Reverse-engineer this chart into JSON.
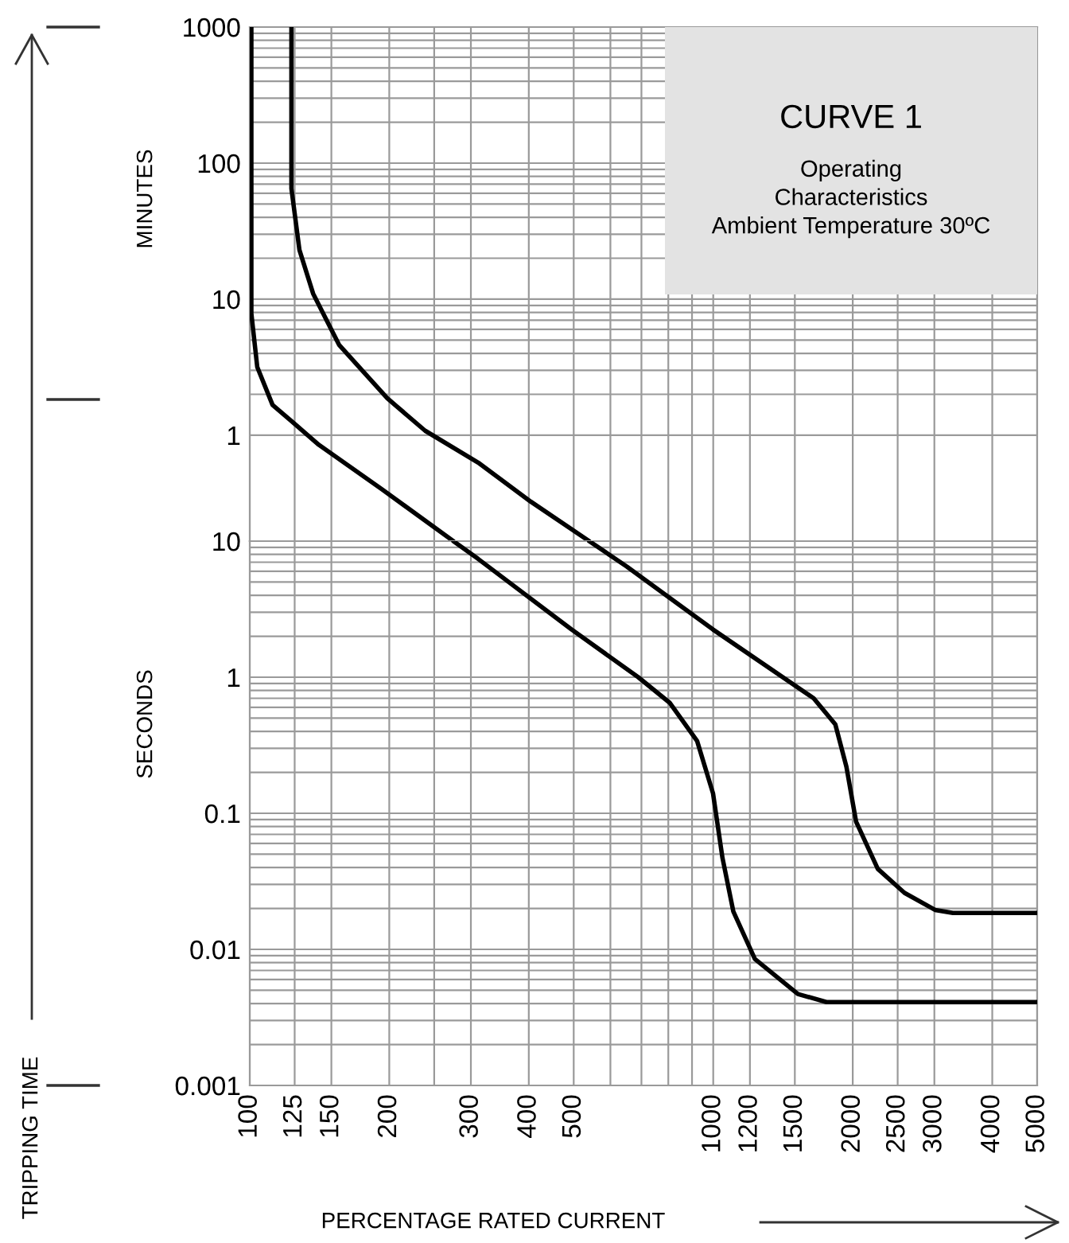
{
  "chart_data": [
    {
      "type": "line",
      "title": "CURVE 1",
      "subtitle": "Operating\nCharacteristics\nAmbient Temperature 30ºC",
      "annotations": [
        "MINUTES",
        "TRIPPING TIME"
      ],
      "log": "xy",
      "grid": true,
      "line_style": "solid",
      "tick_labels": "y",
      "xlim": [
        100,
        5000
      ],
      "xticks": [
        100,
        125,
        150,
        200,
        {
          "value": 250,
          "label": null
        },
        300,
        400,
        500,
        {
          "value": 600,
          "label": null
        },
        {
          "value": 700,
          "label": null
        },
        {
          "value": 800,
          "label": null
        },
        {
          "value": 900,
          "label": null
        },
        1000,
        1200,
        1500,
        2000,
        2500,
        3000,
        4000,
        5000
      ],
      "ylim": [
        0.1667,
        1000
      ],
      "yticks": [
        1,
        10,
        100,
        1000
      ],
      "series": [
        {
          "color": "#000000",
          "x": [
            100.8,
            100.8,
            103.8,
            112,
            123,
            141,
            193,
            275
          ],
          "values": [
            1000,
            7.83,
            3.17,
            1.67,
            1.27,
            0.85,
            0.4,
            0.1667
          ]
        },
        {
          "color": "#000000",
          "x": [
            123,
            123,
            128,
            137,
            156,
            198,
            239,
            311,
            404,
            540
          ],
          "values": [
            1000,
            65,
            23,
            11,
            4.6,
            1.87,
            1.08,
            0.63,
            0.325,
            0.1667
          ]
        }
      ]
    },
    {
      "type": "line",
      "xlabel": "PERCENTAGE RATED CURRENT",
      "annotations": [
        "SECONDS"
      ],
      "log": "xy",
      "grid": true,
      "line_style": "solid",
      "xlim": [
        100,
        5000
      ],
      "xticks": [
        100,
        125,
        150,
        200,
        {
          "value": 250,
          "label": null
        },
        300,
        400,
        500,
        {
          "value": 600,
          "label": null
        },
        {
          "value": 700,
          "label": null
        },
        {
          "value": 800,
          "label": null
        },
        {
          "value": 900,
          "label": null
        },
        1000,
        1200,
        1500,
        2000,
        2500,
        3000,
        4000,
        5000
      ],
      "ylim": [
        0.001,
        10
      ],
      "yticks": [
        0.001,
        0.01,
        0.1,
        1,
        10
      ],
      "series": [
        {
          "color": "#000000",
          "x": [
            275,
            311,
            494,
            689,
            805,
            923,
            999,
            1047,
            1105,
            1230,
            1523,
            1755,
            5000
          ],
          "values": [
            10,
            7.4,
            2.25,
            1.0,
            0.65,
            0.34,
            0.14,
            0.047,
            0.019,
            0.0085,
            0.0047,
            0.0041,
            0.0041
          ]
        },
        {
          "color": "#000000",
          "x": [
            540,
            651,
            999,
            1647,
            1834,
            1938,
            2033,
            2265,
            2586,
            3010,
            3290,
            5000
          ],
          "values": [
            10,
            6.5,
            2.24,
            0.7,
            0.45,
            0.22,
            0.087,
            0.039,
            0.026,
            0.0195,
            0.0185,
            0.0185
          ]
        }
      ]
    }
  ]
}
